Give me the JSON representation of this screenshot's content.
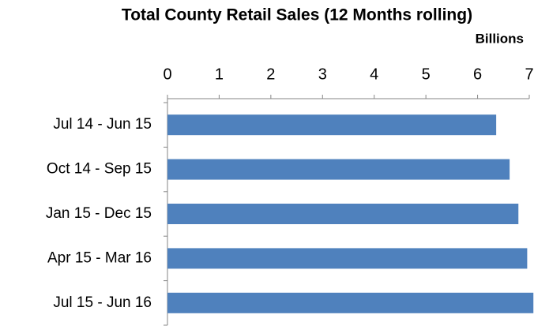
{
  "chart_data": {
    "type": "barh",
    "title": "Total County Retail Sales (12 Months rolling)",
    "axis_unit": "Billions",
    "categories": [
      "Jul 14 - Jun 15",
      "Oct 14 - Sep 15",
      "Jan 15 - Dec 15",
      "Apr 15 - Mar 16",
      "Jul 15 - Jun 16"
    ],
    "values": [
      6.36,
      6.62,
      6.79,
      6.96,
      7.08
    ],
    "color": "#4f81bd",
    "xlim": [
      0,
      7
    ],
    "xticks": [
      0,
      1,
      2,
      3,
      4,
      5,
      6,
      7
    ],
    "grid": false
  }
}
